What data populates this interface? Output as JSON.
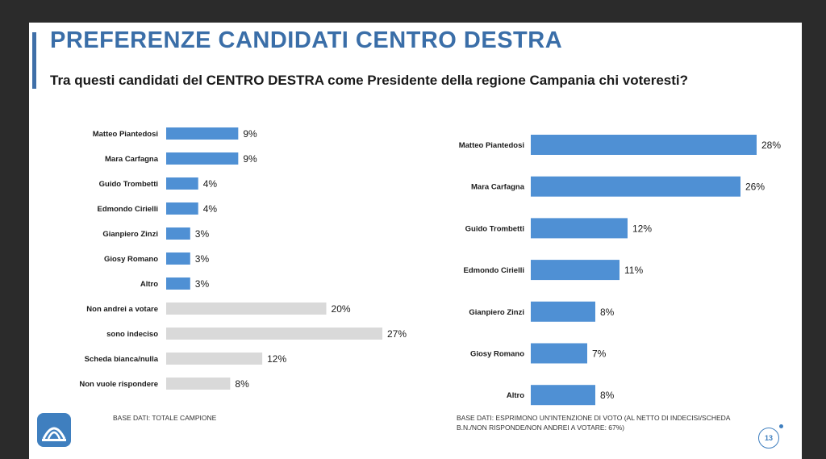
{
  "header": {
    "title": "PREFERENZE CANDIDATI CENTRO DESTRA",
    "subtitle": "Tra questi candidati del CENTRO DESTRA come Presidente della regione Campania chi voteresti?"
  },
  "chart_data": [
    {
      "type": "bar",
      "orientation": "horizontal",
      "name": "left",
      "categories": [
        "Matteo Piantedosi",
        "Mara Carfagna",
        "Guido Trombetti",
        "Edmondo Cirielli",
        "Gianpiero Zinzi",
        "Giosy Romano",
        "Altro",
        "Non andrei a votare",
        "sono indeciso",
        "Scheda bianca/nulla",
        "Non vuole rispondere"
      ],
      "values": [
        9,
        9,
        4,
        4,
        3,
        3,
        3,
        20,
        27,
        12,
        8
      ],
      "labels": [
        "9%",
        "9%",
        "4%",
        "4%",
        "3%",
        "3%",
        "3%",
        "20%",
        "27%",
        "12%",
        "8%"
      ],
      "kinds": [
        "candidate",
        "candidate",
        "candidate",
        "candidate",
        "candidate",
        "candidate",
        "candidate",
        "other",
        "other",
        "other",
        "other"
      ],
      "unit": "%",
      "xlim": [
        0,
        27
      ]
    },
    {
      "type": "bar",
      "orientation": "horizontal",
      "name": "right",
      "categories": [
        "Matteo Piantedosi",
        "Mara Carfagna",
        "Guido Trombetti",
        "Edmondo Cirielli",
        "Gianpiero Zinzi",
        "Giosy Romano",
        "Altro"
      ],
      "values": [
        28,
        26,
        12,
        11,
        8,
        7,
        8
      ],
      "labels": [
        "28%",
        "26%",
        "12%",
        "11%",
        "8%",
        "7%",
        "8%"
      ],
      "unit": "%",
      "xlim": [
        0,
        28
      ]
    }
  ],
  "colors": {
    "candidate_bar": "#4f90d4",
    "other_bar": "#d9d9d9",
    "title": "#3a6ea8"
  },
  "notes": {
    "left": "Base dati: TOTALE CAMPIONE",
    "right": "Base dati: ESPRIMONO UN'INTENZIONE DI VOTO (AL NETTO DI INDECISI/SCHEDA B.N./NON RISPONDE/NON ANDREI A VOTARE: 67%)"
  },
  "footer": {
    "page_number": "13",
    "logo_icon": "logo-icon"
  }
}
